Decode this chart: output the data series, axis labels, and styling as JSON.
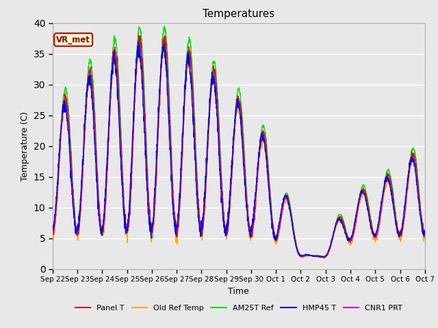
{
  "title": "Temperatures",
  "xlabel": "Time",
  "ylabel": "Temperature (C)",
  "ylim": [
    0,
    40
  ],
  "yticks": [
    0,
    5,
    10,
    15,
    20,
    25,
    30,
    35,
    40
  ],
  "xtick_labels": [
    "Sep 22",
    "Sep 23",
    "Sep 24",
    "Sep 25",
    "Sep 26",
    "Sep 27",
    "Sep 28",
    "Sep 29",
    "Sep 30",
    "Oct 1",
    "Oct 2",
    "Oct 3",
    "Oct 4",
    "Oct 5",
    "Oct 6",
    "Oct 7"
  ],
  "series_colors": [
    "#dd0000",
    "#ffaa00",
    "#00dd00",
    "#0000dd",
    "#cc00cc"
  ],
  "series_labels": [
    "Panel T",
    "Old Ref Temp",
    "AM25T Ref",
    "HMP45 T",
    "CNR1 PRT"
  ],
  "annotation_text": "VR_met",
  "bg_color": "#e8e8e8",
  "grid_color": "#ffffff",
  "figsize": [
    6.4,
    4.8
  ],
  "dpi": 100
}
